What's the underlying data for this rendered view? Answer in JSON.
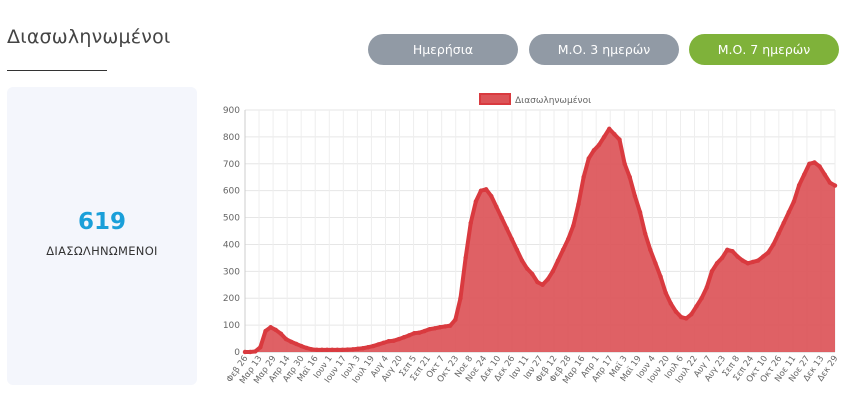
{
  "page": {
    "title": "Διασωληνωμένοι"
  },
  "toggles": {
    "daily": "Ημερήσια",
    "avg3": "Μ.Ο. 3 ημερών",
    "avg7": "Μ.Ο. 7 ημερών",
    "active": "avg7"
  },
  "stat": {
    "value": "619",
    "label": "ΔΙΑΣΩΛΗΝΩΜΕΝΟΙ"
  },
  "colors": {
    "accent": "#7fb23a",
    "inactive_button": "#919aa5",
    "stat_value": "#1a9fd9",
    "series_line": "#d93a3f",
    "series_fill": "#dc5458",
    "card_bg": "#f4f6fc"
  },
  "chart_data": {
    "type": "area",
    "title": "",
    "xlabel": "",
    "ylabel": "",
    "ylim": [
      0,
      900
    ],
    "yticks": [
      0,
      100,
      200,
      300,
      400,
      500,
      600,
      700,
      800,
      900
    ],
    "grid": true,
    "legend": "top-center",
    "x_tick_labels": [
      "Φεβ 26",
      "Μαρ 13",
      "Μαρ 29",
      "Απρ 14",
      "Απρ 30",
      "Μαϊ 16",
      "Ιουν 1",
      "Ιουν 17",
      "Ιουλ 3",
      "Ιουλ 19",
      "Αυγ 4",
      "Αυγ 20",
      "Σεπ 5",
      "Σεπ 21",
      "Οκτ 7",
      "Οκτ 23",
      "Νοε 8",
      "Νοε 24",
      "Δεκ 10",
      "Δεκ 26",
      "Ιαν 11",
      "Ιαν 27",
      "Φεβ 12",
      "Φεβ 28",
      "Μαρ 16",
      "Απρ 1",
      "Απρ 17",
      "Μαϊ 3",
      "Μαϊ 19",
      "Ιουν 4",
      "Ιουν 20",
      "Ιουλ 6",
      "Ιουλ 22",
      "Αυγ 7",
      "Αυγ 23",
      "Σεπ 8",
      "Σεπ 24",
      "Οκτ 10",
      "Οκτ 26",
      "Νοε 11",
      "Νοε 27",
      "Δεκ 13",
      "Δεκ 29"
    ],
    "series": [
      {
        "name": "Διασωληνωμένοι",
        "values": [
          0,
          0,
          2,
          18,
          78,
          92,
          82,
          68,
          48,
          38,
          30,
          22,
          15,
          10,
          8,
          8,
          8,
          8,
          8,
          8,
          9,
          10,
          12,
          14,
          18,
          22,
          28,
          34,
          40,
          42,
          48,
          55,
          62,
          70,
          72,
          78,
          85,
          88,
          92,
          95,
          98,
          120,
          200,
          350,
          480,
          560,
          600,
          605,
          580,
          540,
          500,
          460,
          420,
          380,
          340,
          310,
          290,
          260,
          250,
          270,
          300,
          340,
          380,
          420,
          470,
          550,
          650,
          720,
          750,
          770,
          800,
          830,
          810,
          790,
          700,
          650,
          580,
          520,
          440,
          380,
          330,
          280,
          220,
          180,
          150,
          130,
          125,
          140,
          170,
          200,
          240,
          300,
          330,
          350,
          380,
          375,
          355,
          340,
          330,
          335,
          340,
          355,
          370,
          400,
          440,
          480,
          520,
          560,
          620,
          660,
          700,
          705,
          690,
          660,
          630,
          619
        ]
      }
    ]
  }
}
